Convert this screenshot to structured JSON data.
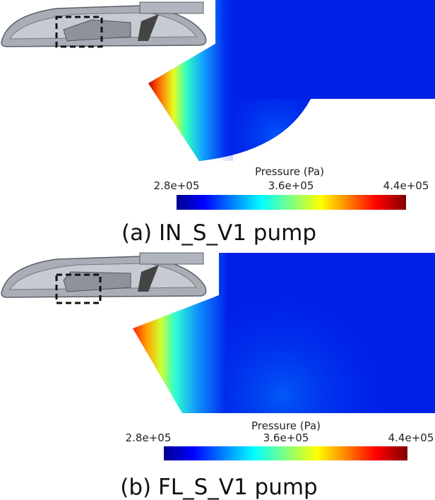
{
  "panels": [
    {
      "colorbar": {
        "title": "Pressure (Pa)",
        "ticks": [
          "2.8e+05",
          "3.6e+05",
          "4.4e+05"
        ]
      },
      "caption": "(a) IN_S_V1 pump"
    },
    {
      "colorbar": {
        "title": "Pressure (Pa)",
        "ticks": [
          "2.8e+05",
          "3.6e+05",
          "4.4e+05"
        ]
      },
      "caption": "(b) FL_S_V1 pump"
    }
  ]
}
